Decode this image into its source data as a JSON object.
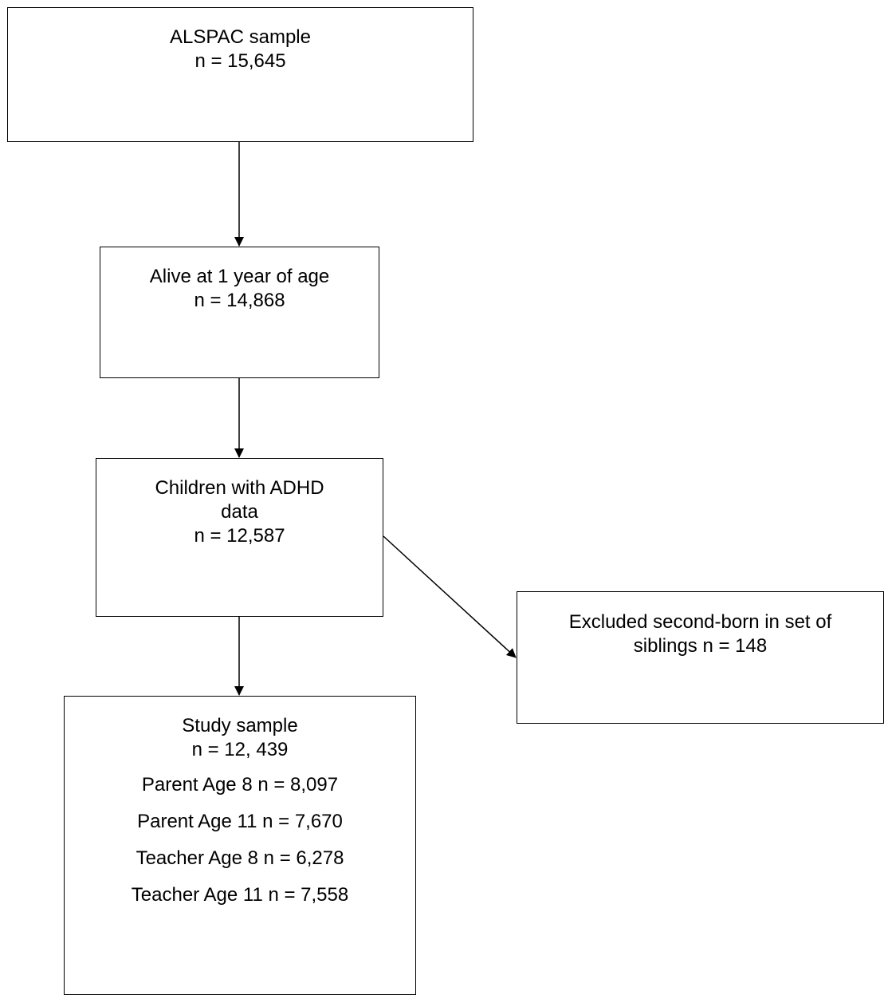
{
  "diagram": {
    "nodes": {
      "alspac": {
        "title": "ALSPAC sample",
        "count": "n = 15,645"
      },
      "alive": {
        "title": "Alive at 1 year of age",
        "count": "n = 14,868"
      },
      "adhd": {
        "title_line1": "Children with ADHD",
        "title_line2": "data",
        "count": "n = 12,587"
      },
      "excluded": {
        "line1": "Excluded second-born in set of",
        "line2": "siblings n = 148"
      },
      "study": {
        "title": "Study sample",
        "count": "n = 12, 439",
        "breakdown": [
          "Parent Age 8 n = 8,097",
          "Parent Age 11 n = 7,670",
          "Teacher Age 8 n = 6,278",
          "Teacher Age 11 n = 7,558"
        ]
      }
    },
    "edges": [
      {
        "from": "alspac",
        "to": "alive"
      },
      {
        "from": "alive",
        "to": "adhd"
      },
      {
        "from": "adhd",
        "to": "study"
      },
      {
        "from": "adhd",
        "to": "excluded"
      }
    ],
    "colors": {
      "stroke": "#000000",
      "background": "#ffffff",
      "text": "#000000"
    }
  }
}
